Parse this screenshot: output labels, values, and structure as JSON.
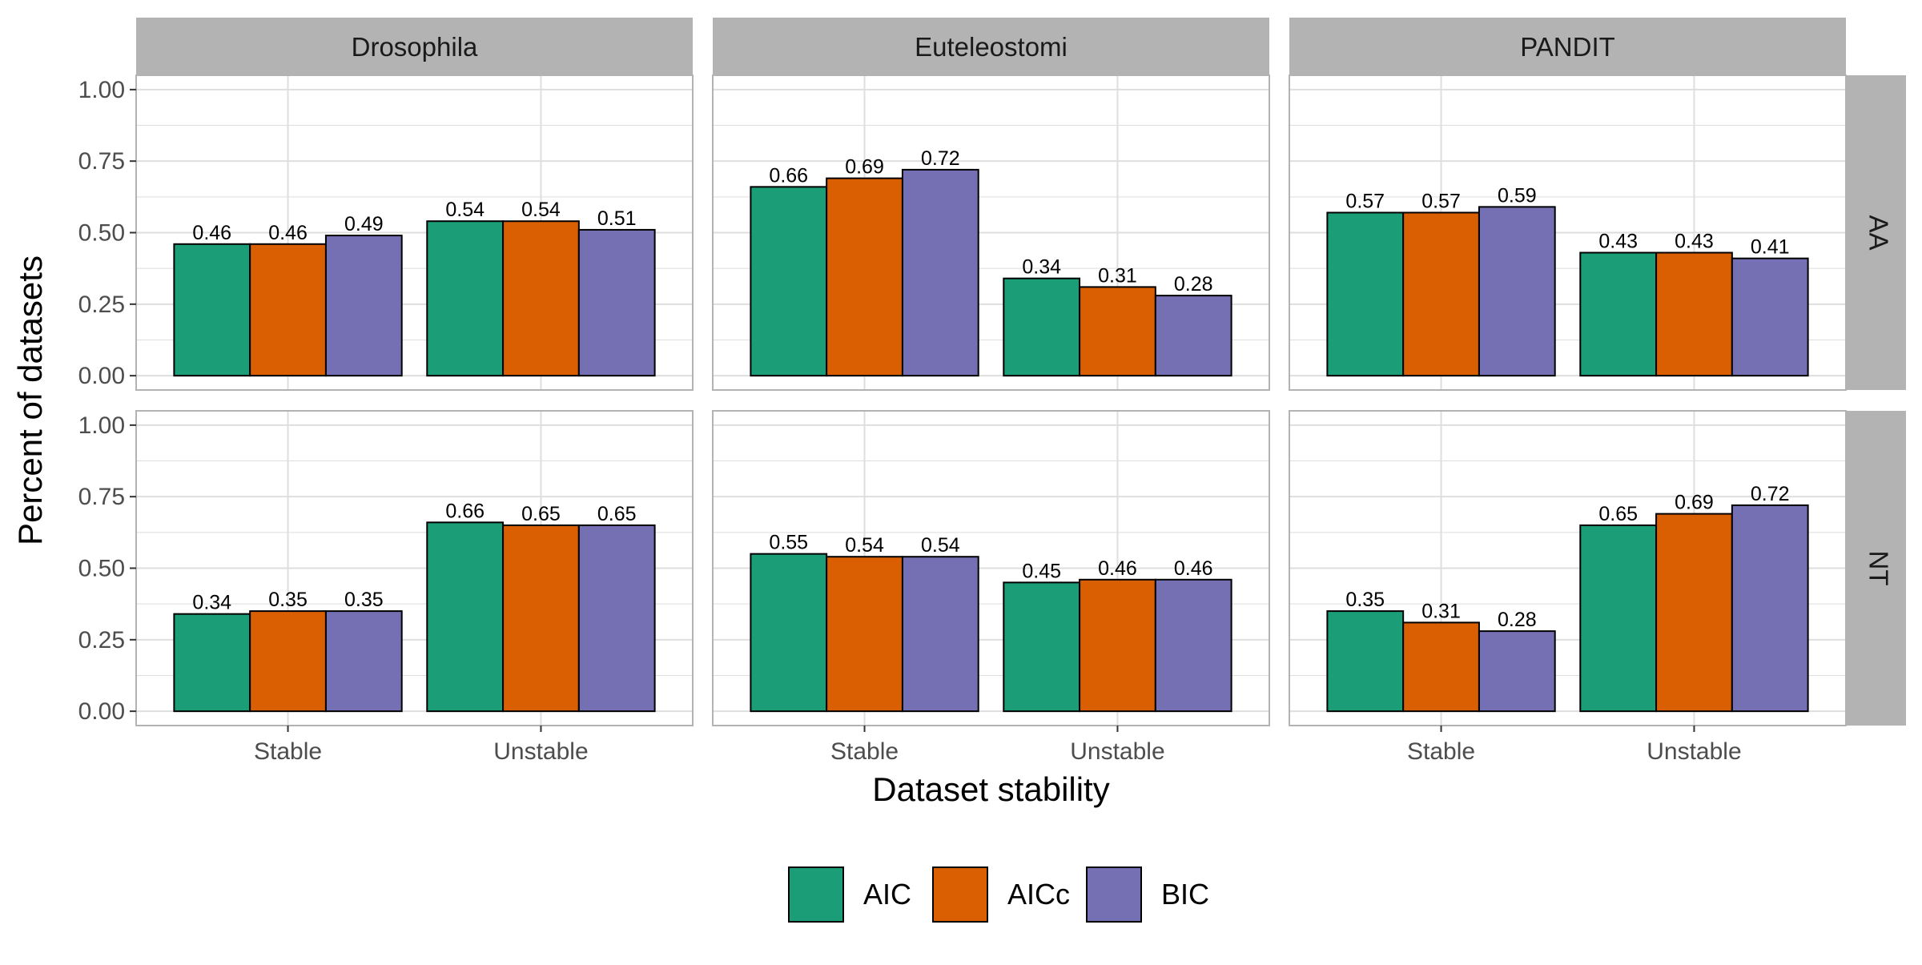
{
  "chart_data": {
    "type": "bar",
    "facet_columns": [
      "Drosophila",
      "Euteleostomi",
      "PANDIT"
    ],
    "facet_rows": [
      "AA",
      "NT"
    ],
    "categories": [
      "Stable",
      "Unstable"
    ],
    "series_names": [
      "AIC",
      "AICc",
      "BIC"
    ],
    "colors": [
      "#1b9e77",
      "#d95f02",
      "#7570b3"
    ],
    "xlabel": "Dataset stability",
    "ylabel": "Percent of datasets",
    "ylim": [
      -0.05,
      1.05
    ],
    "y_ticks": [
      0.0,
      0.25,
      0.5,
      0.75,
      1.0
    ],
    "y_tick_labels": [
      "0.00",
      "0.25",
      "0.50",
      "0.75",
      "1.00"
    ],
    "grid": true,
    "legend_position": "bottom",
    "panels": [
      {
        "column": "Drosophila",
        "row": "AA",
        "values": {
          "AIC": [
            0.46,
            0.54
          ],
          "AICc": [
            0.46,
            0.54
          ],
          "BIC": [
            0.49,
            0.51
          ]
        }
      },
      {
        "column": "Euteleostomi",
        "row": "AA",
        "values": {
          "AIC": [
            0.66,
            0.34
          ],
          "AICc": [
            0.69,
            0.31
          ],
          "BIC": [
            0.72,
            0.28
          ]
        }
      },
      {
        "column": "PANDIT",
        "row": "AA",
        "values": {
          "AIC": [
            0.57,
            0.43
          ],
          "AICc": [
            0.57,
            0.43
          ],
          "BIC": [
            0.59,
            0.41
          ]
        }
      },
      {
        "column": "Drosophila",
        "row": "NT",
        "values": {
          "AIC": [
            0.34,
            0.66
          ],
          "AICc": [
            0.35,
            0.65
          ],
          "BIC": [
            0.35,
            0.65
          ]
        }
      },
      {
        "column": "Euteleostomi",
        "row": "NT",
        "values": {
          "AIC": [
            0.55,
            0.45
          ],
          "AICc": [
            0.54,
            0.46
          ],
          "BIC": [
            0.54,
            0.46
          ]
        }
      },
      {
        "column": "PANDIT",
        "row": "NT",
        "values": {
          "AIC": [
            0.35,
            0.65
          ],
          "AICc": [
            0.31,
            0.69
          ],
          "BIC": [
            0.28,
            0.72
          ]
        }
      }
    ]
  }
}
